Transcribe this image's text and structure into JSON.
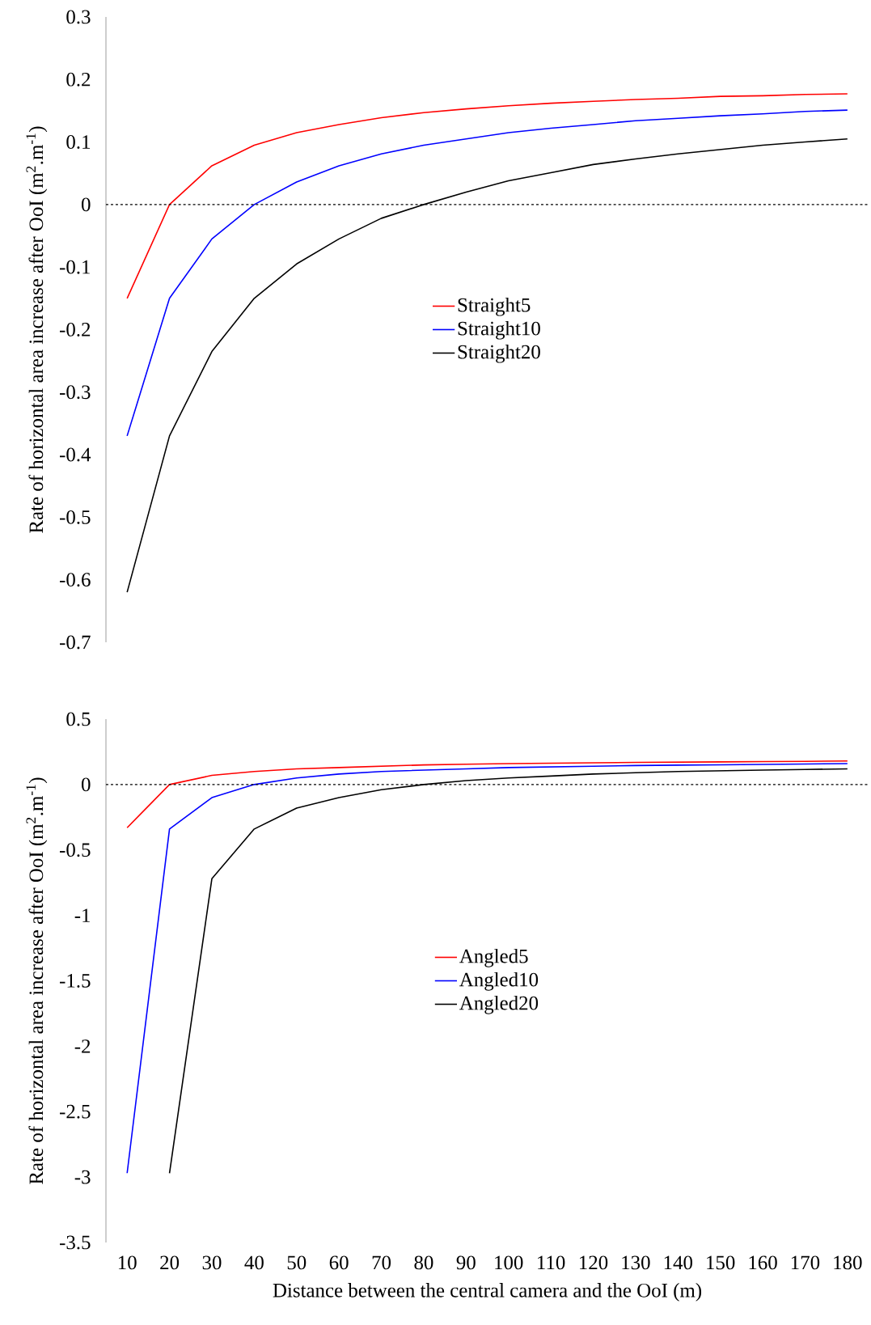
{
  "chart_data": [
    {
      "type": "line",
      "ylabel": "Rate of horizontal area increase after OoI (m$^{2}$.m$^{-1}$)",
      "categories": [
        "10",
        "20",
        "30",
        "40",
        "50",
        "60",
        "70",
        "80",
        "90",
        "100",
        "110",
        "120",
        "130",
        "140",
        "150",
        "160",
        "170",
        "180"
      ],
      "tick_labels": "y",
      "ylim": [
        -0.7,
        0.3
      ],
      "yticks": [
        -0.7,
        -0.6,
        -0.5,
        -0.4,
        -0.3,
        -0.2,
        -0.1,
        0,
        0.1,
        0.2,
        0.3
      ],
      "legend": "center",
      "ref_lines": [
        {
          "axis": "y",
          "value": 0,
          "color": "#000000",
          "line_style": "dashed"
        }
      ],
      "series": [
        {
          "name": "Straight5",
          "color": "#ff0000",
          "values": [
            -0.15,
            0,
            0.062,
            0.095,
            0.115,
            0.128,
            0.139,
            0.147,
            0.153,
            0.158,
            0.162,
            0.165,
            0.168,
            0.17,
            0.173,
            0.174,
            0.176,
            0.177
          ]
        },
        {
          "name": "Straight10",
          "color": "#0000ff",
          "values": [
            -0.37,
            -0.15,
            -0.055,
            0,
            0.036,
            0.062,
            0.081,
            0.095,
            0.105,
            0.115,
            0.122,
            0.128,
            0.134,
            0.138,
            0.142,
            0.145,
            0.149,
            0.151
          ]
        },
        {
          "name": "Straight20",
          "color": "#000000",
          "values": [
            -0.62,
            -0.37,
            -0.235,
            -0.15,
            -0.095,
            -0.055,
            -0.022,
            0,
            0.02,
            0.038,
            0.051,
            0.064,
            0.073,
            0.081,
            0.088,
            0.095,
            0.1,
            0.105
          ]
        }
      ]
    },
    {
      "type": "line",
      "ylabel": "Rate of horizontal area increase after OoI (m$^{2}$.m$^{-1}$)",
      "xlabel": "Distance between the central camera and the OoI (m)",
      "categories": [
        "10",
        "20",
        "30",
        "40",
        "50",
        "60",
        "70",
        "80",
        "90",
        "100",
        "110",
        "120",
        "130",
        "140",
        "150",
        "160",
        "170",
        "180"
      ],
      "ylim": [
        -3.5,
        0.5
      ],
      "yticks": [
        -3.5,
        -3,
        -2.5,
        -2,
        -1.5,
        -1,
        -0.5,
        0,
        0.5
      ],
      "legend": "center",
      "ref_lines": [
        {
          "axis": "y",
          "value": 0,
          "color": "#000000",
          "line_style": "dashed"
        }
      ],
      "series": [
        {
          "name": "Angled5",
          "color": "#ff0000",
          "values": [
            -0.33,
            0,
            0.07,
            0.1,
            0.12,
            0.13,
            0.14,
            0.15,
            0.155,
            0.16,
            0.163,
            0.166,
            0.169,
            0.171,
            0.173,
            0.175,
            0.177,
            0.18
          ]
        },
        {
          "name": "Angled10",
          "color": "#0000ff",
          "values": [
            -2.97,
            -0.34,
            -0.1,
            0,
            0.05,
            0.08,
            0.1,
            0.11,
            0.12,
            0.13,
            0.135,
            0.14,
            0.145,
            0.148,
            0.151,
            0.154,
            0.157,
            0.16
          ]
        },
        {
          "name": "Angled20",
          "color": "#000000",
          "values": [
            null,
            -2.97,
            -0.72,
            -0.34,
            -0.18,
            -0.1,
            -0.04,
            0,
            0.03,
            0.05,
            0.065,
            0.08,
            0.09,
            0.1,
            0.105,
            0.11,
            0.115,
            0.12
          ]
        }
      ]
    }
  ]
}
